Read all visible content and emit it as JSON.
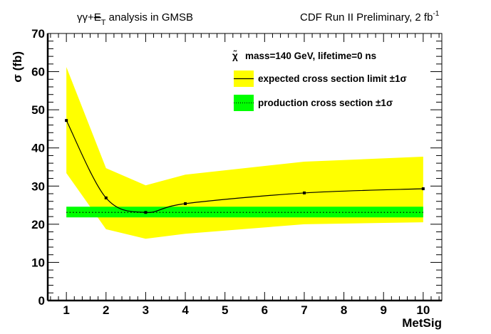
{
  "chart_data": {
    "type": "line",
    "title_left": "γγ+E̸T analysis in GMSB",
    "title_left_parts": {
      "prefix": "γγ+",
      "met_symbol": "E",
      "subscript": "T",
      "suffix": " analysis in GMSB"
    },
    "title_right": "CDF Run II Preliminary, 2 fb",
    "title_right_superscript": "-1",
    "xlabel": "MetSig",
    "ylabel": "σ (fb)",
    "xlim": [
      0.53,
      10.47
    ],
    "ylim": [
      0,
      70
    ],
    "xticks": [
      1,
      2,
      3,
      4,
      5,
      6,
      7,
      8,
      9,
      10
    ],
    "xtick_labels": [
      "1",
      "2",
      "3",
      "4",
      "5",
      "6",
      "7",
      "8",
      "9",
      "10"
    ],
    "yticks": [
      0,
      10,
      20,
      30,
      40,
      50,
      60,
      70
    ],
    "ytick_labels": [
      "0",
      "10",
      "20",
      "30",
      "40",
      "50",
      "60",
      "70"
    ],
    "x_minor_per_major": 5,
    "y_minor_per_major": 5,
    "grid": false,
    "legend": {
      "placement": "top-right",
      "header_symbol": "χ̃",
      "header": "mass=140 GeV, lifetime=0 ns",
      "entries": [
        {
          "label": "expected cross section limit ±1σ",
          "fill": "#ffff00",
          "line": "solid"
        },
        {
          "label": "production cross section ±1σ",
          "fill": "#00ff00",
          "line": "dotted"
        }
      ]
    },
    "series": [
      {
        "name": "expected cross section limit",
        "x": [
          1,
          2,
          3,
          4,
          7,
          10
        ],
        "y": [
          47.2,
          26.9,
          23.1,
          25.4,
          28.2,
          29.3
        ],
        "band_upper": [
          61.2,
          34.7,
          30.2,
          33.0,
          36.4,
          37.7
        ],
        "band_lower": [
          33.4,
          18.7,
          16.2,
          17.5,
          20.0,
          20.5
        ],
        "color": "#000000",
        "band_color": "#ffff00"
      },
      {
        "name": "production cross section",
        "x": [
          1,
          10
        ],
        "y": [
          23.1,
          23.1
        ],
        "band_upper": [
          24.6,
          24.6
        ],
        "band_lower": [
          21.8,
          21.8
        ],
        "color": "#000000",
        "band_color": "#00ff00"
      }
    ]
  }
}
